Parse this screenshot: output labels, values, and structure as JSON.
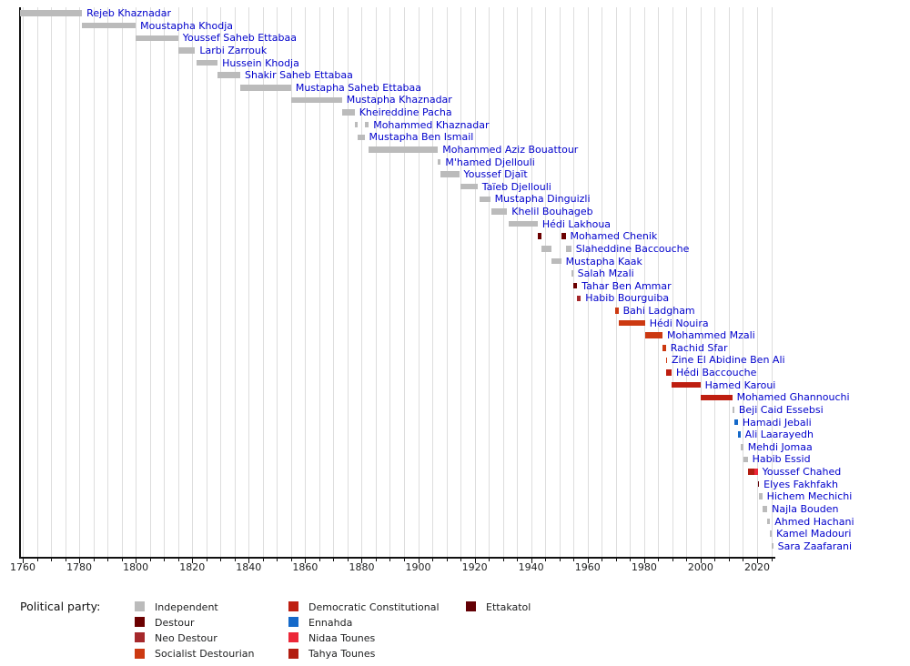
{
  "chart_data": {
    "type": "bar",
    "subtype": "timeline-gantt",
    "title": "",
    "xlabel": "",
    "ylabel": "",
    "axis": {
      "x_min": 1759,
      "x_max": 2026,
      "major_tick_years": [
        1760,
        1780,
        1800,
        1820,
        1840,
        1860,
        1880,
        1900,
        1920,
        1940,
        1960,
        1980,
        2000,
        2020
      ],
      "minor_tick_step": 5,
      "grid": "vertical, every 5 years, light gray"
    },
    "palette": {
      "independent": "#bbbbbb",
      "destour": "#6b0000",
      "neo_destour": "#a5282b",
      "socialist_destourian": "#cc3911",
      "democratic_constitutional": "#be1e10",
      "ennahda": "#1569c9",
      "nidaa_tounes": "#ec2738",
      "tahya_tounes": "#b21d10",
      "ettakatol": "#630005"
    },
    "label_color": "#0000cc",
    "legend": {
      "heading": "Political party:",
      "position": "bottom",
      "columns": [
        [
          {
            "party": "independent",
            "label": "Independent"
          },
          {
            "party": "destour",
            "label": "Destour"
          },
          {
            "party": "neo_destour",
            "label": "Neo Destour"
          },
          {
            "party": "socialist_destourian",
            "label": "Socialist Destourian"
          }
        ],
        [
          {
            "party": "democratic_constitutional",
            "label": "Democratic Constitutional"
          },
          {
            "party": "ennahda",
            "label": "Ennahda"
          },
          {
            "party": "nidaa_tounes",
            "label": "Nidaa Tounes"
          },
          {
            "party": "tahya_tounes",
            "label": "Tahya Tounes"
          }
        ],
        [
          {
            "party": "ettakatol",
            "label": "Ettakatol"
          }
        ]
      ]
    },
    "people": [
      {
        "name": "Rejeb Khaznadar",
        "segments": [
          {
            "start": 1759,
            "end": 1781,
            "party": "independent"
          }
        ]
      },
      {
        "name": "Moustapha Khodja",
        "segments": [
          {
            "start": 1781,
            "end": 1800,
            "party": "independent"
          }
        ]
      },
      {
        "name": "Youssef Saheb Ettabaa",
        "segments": [
          {
            "start": 1800,
            "end": 1815,
            "party": "independent"
          }
        ]
      },
      {
        "name": "Larbi Zarrouk",
        "segments": [
          {
            "start": 1815,
            "end": 1821,
            "party": "independent"
          }
        ]
      },
      {
        "name": "Hussein Khodja",
        "segments": [
          {
            "start": 1821.5,
            "end": 1829,
            "party": "independent"
          }
        ]
      },
      {
        "name": "Shakir Saheb Ettabaa",
        "segments": [
          {
            "start": 1829,
            "end": 1837,
            "party": "independent"
          }
        ]
      },
      {
        "name": "Mustapha Saheb Ettabaa",
        "segments": [
          {
            "start": 1837,
            "end": 1855,
            "party": "independent"
          }
        ]
      },
      {
        "name": "Mustapha Khaznadar",
        "segments": [
          {
            "start": 1855,
            "end": 1873,
            "party": "independent"
          }
        ]
      },
      {
        "name": "Kheireddine Pacha",
        "segments": [
          {
            "start": 1873,
            "end": 1877.5,
            "party": "independent"
          }
        ]
      },
      {
        "name": "Mohammed Khaznadar",
        "segments": [
          {
            "start": 1877.5,
            "end": 1878.5,
            "party": "independent"
          },
          {
            "start": 1881,
            "end": 1882.5,
            "party": "independent"
          }
        ]
      },
      {
        "name": "Mustapha Ben Ismail",
        "segments": [
          {
            "start": 1878.5,
            "end": 1881,
            "party": "independent"
          }
        ]
      },
      {
        "name": "Mohammed Aziz Bouattour",
        "segments": [
          {
            "start": 1882.5,
            "end": 1907,
            "party": "independent"
          }
        ]
      },
      {
        "name": "M'hamed Djellouli",
        "segments": [
          {
            "start": 1907,
            "end": 1908,
            "party": "independent"
          }
        ]
      },
      {
        "name": "Youssef Djaït",
        "segments": [
          {
            "start": 1908,
            "end": 1914.5,
            "party": "independent"
          }
        ]
      },
      {
        "name": "Taïeb Djellouli",
        "segments": [
          {
            "start": 1915,
            "end": 1921,
            "party": "independent"
          }
        ]
      },
      {
        "name": "Mustapha Dinguizli",
        "segments": [
          {
            "start": 1921.8,
            "end": 1925.5,
            "party": "independent"
          }
        ]
      },
      {
        "name": "Khelil Bouhageb",
        "segments": [
          {
            "start": 1926,
            "end": 1931.5,
            "party": "independent"
          }
        ]
      },
      {
        "name": "Hédi Lakhoua",
        "segments": [
          {
            "start": 1932,
            "end": 1942.3,
            "party": "independent"
          }
        ]
      },
      {
        "name": "Mohamed Chenik",
        "segments": [
          {
            "start": 1942.3,
            "end": 1943.5,
            "party": "destour"
          },
          {
            "start": 1950.6,
            "end": 1952.2,
            "party": "destour"
          }
        ]
      },
      {
        "name": "Slaheddine Baccouche",
        "segments": [
          {
            "start": 1943.5,
            "end": 1947.3,
            "party": "independent"
          },
          {
            "start": 1952.2,
            "end": 1954.2,
            "party": "independent"
          }
        ]
      },
      {
        "name": "Mustapha Kaak",
        "segments": [
          {
            "start": 1947.3,
            "end": 1950.6,
            "party": "independent"
          }
        ]
      },
      {
        "name": "Salah Mzali",
        "segments": [
          {
            "start": 1954.2,
            "end": 1954.8,
            "party": "independent"
          }
        ]
      },
      {
        "name": "Tahar Ben Ammar",
        "segments": [
          {
            "start": 1954.8,
            "end": 1956.3,
            "party": "destour"
          }
        ]
      },
      {
        "name": "Habib Bourguiba",
        "segments": [
          {
            "start": 1956.3,
            "end": 1957.6,
            "party": "neo_destour"
          }
        ]
      },
      {
        "name": "Bahi Ladgham",
        "segments": [
          {
            "start": 1969.8,
            "end": 1970.9,
            "party": "socialist_destourian"
          }
        ]
      },
      {
        "name": "Hédi Nouira",
        "segments": [
          {
            "start": 1970.9,
            "end": 1980.3,
            "party": "socialist_destourian"
          }
        ]
      },
      {
        "name": "Mohammed Mzali",
        "segments": [
          {
            "start": 1980.3,
            "end": 1986.5,
            "party": "socialist_destourian"
          }
        ]
      },
      {
        "name": "Rachid Sfar",
        "segments": [
          {
            "start": 1986.5,
            "end": 1987.7,
            "party": "socialist_destourian"
          }
        ]
      },
      {
        "name": "Zine El Abidine Ben Ali",
        "segments": [
          {
            "start": 1987.7,
            "end": 1988.1,
            "party": "socialist_destourian"
          }
        ]
      },
      {
        "name": "Hédi Baccouche",
        "segments": [
          {
            "start": 1987.9,
            "end": 1989.7,
            "party": "democratic_constitutional"
          }
        ]
      },
      {
        "name": "Hamed Karoui",
        "segments": [
          {
            "start": 1989.7,
            "end": 1999.9,
            "party": "democratic_constitutional"
          }
        ]
      },
      {
        "name": "Mohamed Ghannouchi",
        "segments": [
          {
            "start": 1999.9,
            "end": 2011.2,
            "party": "democratic_constitutional"
          }
        ]
      },
      {
        "name": "Beji Caid Essebsi",
        "segments": [
          {
            "start": 2011.2,
            "end": 2011.9,
            "party": "independent"
          }
        ]
      },
      {
        "name": "Hamadi Jebali",
        "segments": [
          {
            "start": 2011.95,
            "end": 2013.2,
            "party": "ennahda"
          }
        ]
      },
      {
        "name": "Ali Laarayedh",
        "segments": [
          {
            "start": 2013.2,
            "end": 2014.1,
            "party": "ennahda"
          }
        ]
      },
      {
        "name": "Mehdi Jomaa",
        "segments": [
          {
            "start": 2014.1,
            "end": 2015.1,
            "party": "independent"
          }
        ]
      },
      {
        "name": "Habib Essid",
        "segments": [
          {
            "start": 2015.1,
            "end": 2016.65,
            "party": "independent"
          }
        ]
      },
      {
        "name": "Youssef Chahed",
        "segments": [
          {
            "start": 2016.65,
            "end": 2019.1,
            "party": "tahya_tounes"
          },
          {
            "start": 2019.1,
            "end": 2020.2,
            "party": "nidaa_tounes"
          }
        ]
      },
      {
        "name": "Elyes Fakhfakh",
        "segments": [
          {
            "start": 2020.2,
            "end": 2020.7,
            "party": "ettakatol"
          }
        ]
      },
      {
        "name": "Hichem Mechichi",
        "segments": [
          {
            "start": 2020.75,
            "end": 2021.8,
            "party": "independent"
          }
        ]
      },
      {
        "name": "Najla Bouden",
        "segments": [
          {
            "start": 2021.8,
            "end": 2023.6,
            "party": "independent"
          }
        ]
      },
      {
        "name": "Ahmed Hachani",
        "segments": [
          {
            "start": 2023.6,
            "end": 2024.6,
            "party": "independent"
          }
        ]
      },
      {
        "name": "Kamel Madouri",
        "segments": [
          {
            "start": 2024.6,
            "end": 2025.2,
            "party": "independent"
          }
        ]
      },
      {
        "name": "Sara Zaafarani",
        "segments": [
          {
            "start": 2025.2,
            "end": 2025.7,
            "party": "independent"
          }
        ]
      }
    ]
  }
}
